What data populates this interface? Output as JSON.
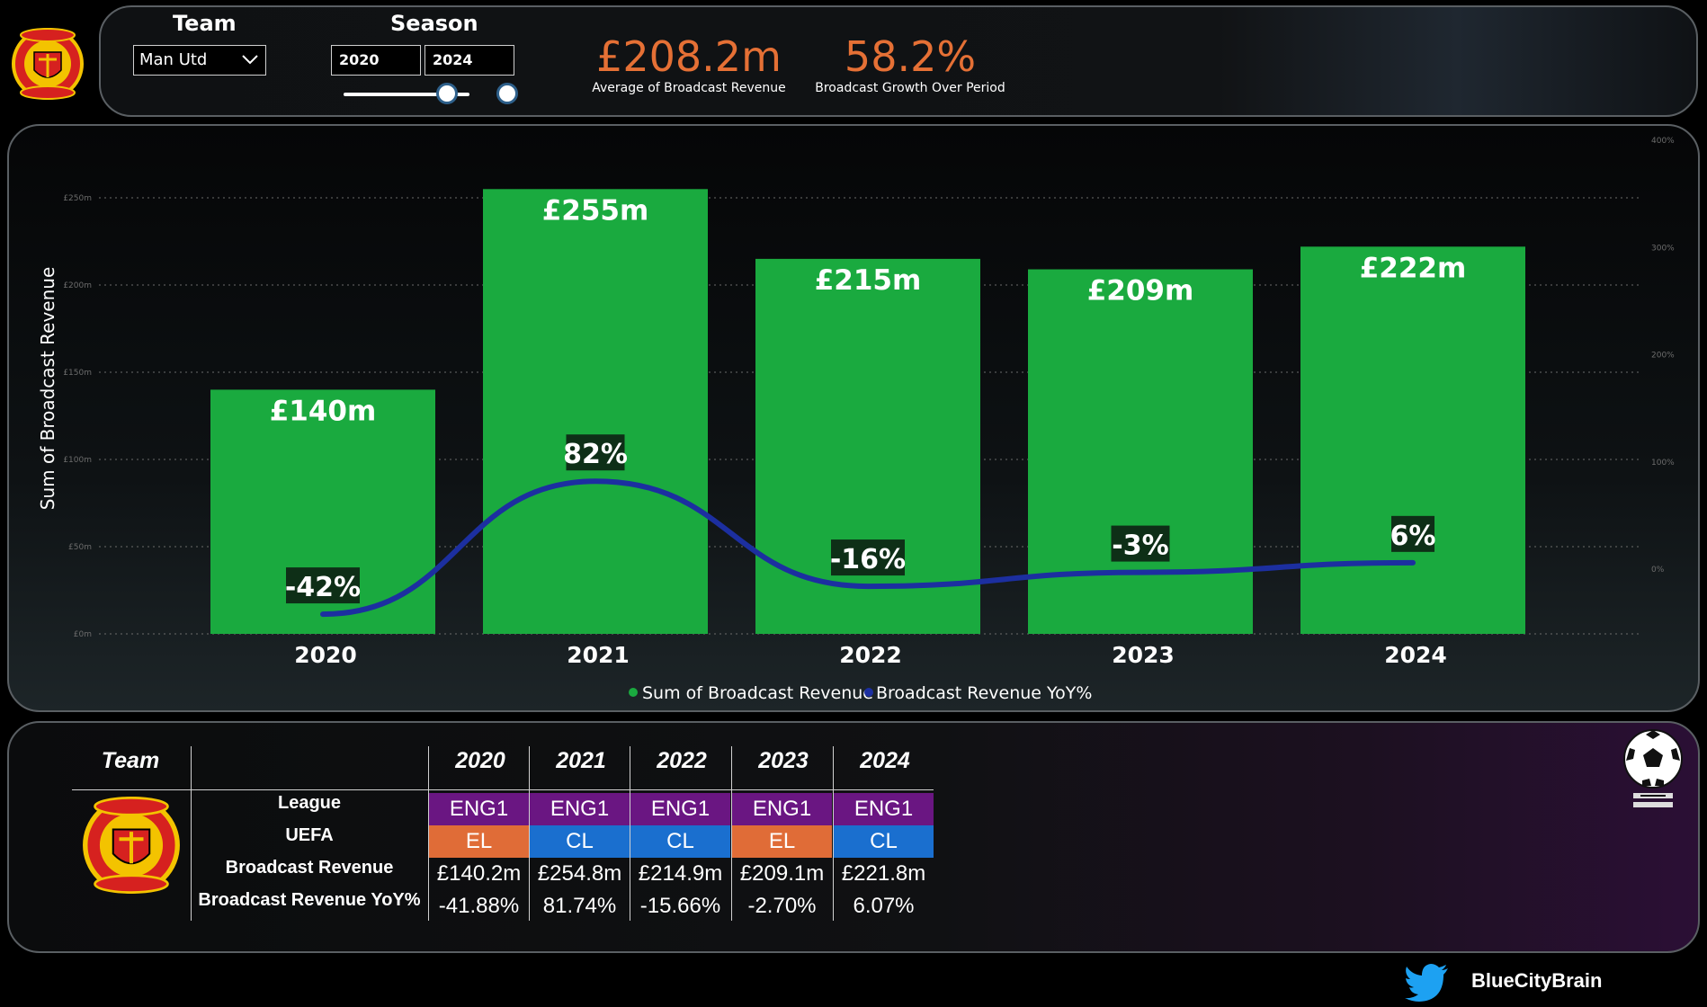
{
  "filters": {
    "team_title": "Team",
    "team_value": "Man Utd",
    "season_title": "Season",
    "season_start": "2020",
    "season_end": "2024",
    "slider_start_fraction": 0.82,
    "slider_end_fraction": 1.0
  },
  "kpis": [
    {
      "value": "£208.2m",
      "label": "Average of Broadcast Revenue"
    },
    {
      "value": "58.2%",
      "label": "Broadcast Growth Over Period"
    }
  ],
  "colors": {
    "accent": "#e57035",
    "bar": "#1aaa3f",
    "line": "#1c2fa0",
    "league": "#6a1682",
    "el": "#e06c37",
    "cl": "#1a6fcf"
  },
  "chart_data": {
    "type": "bar",
    "categories": [
      "2020",
      "2021",
      "2022",
      "2023",
      "2024"
    ],
    "ylabel": "Sum of Broadcast Revenue",
    "ylim": [
      0,
      250
    ],
    "y_ticks": [
      "£0m",
      "£50m",
      "£100m",
      "£150m",
      "£200m",
      "£250m"
    ],
    "y2lim": [
      -50,
      400
    ],
    "y2_ticks": [
      "0%",
      "100%",
      "200%",
      "300%",
      "400%"
    ],
    "series": [
      {
        "name": "Sum of Broadcast Revenue",
        "type": "bar",
        "values": [
          140,
          255,
          215,
          209,
          222
        ],
        "labels": [
          "£140m",
          "£255m",
          "£215m",
          "£209m",
          "£222m"
        ]
      },
      {
        "name": "Broadcast Revenue YoY%",
        "type": "line",
        "values": [
          -42,
          82,
          -16,
          -3,
          6
        ],
        "labels": [
          "-42%",
          "82%",
          "-16%",
          "-3%",
          "6%"
        ]
      }
    ],
    "legend": "bottom-center",
    "grid": true
  },
  "table": {
    "team_header": "Team",
    "years": [
      "2020",
      "2021",
      "2022",
      "2023",
      "2024"
    ],
    "row_labels": [
      "League",
      "UEFA",
      "Broadcast Revenue",
      "Broadcast Revenue YoY%"
    ],
    "league": [
      "ENG1",
      "ENG1",
      "ENG1",
      "ENG1",
      "ENG1"
    ],
    "uefa": [
      "EL",
      "CL",
      "CL",
      "EL",
      "CL"
    ],
    "revenue": [
      "£140.2m",
      "£254.8m",
      "£214.9m",
      "£209.1m",
      "£221.8m"
    ],
    "yoy": [
      "-41.88%",
      "81.74%",
      "-15.66%",
      "-2.70%",
      "6.07%"
    ]
  },
  "footer": {
    "handle": "BlueCityBrain"
  }
}
